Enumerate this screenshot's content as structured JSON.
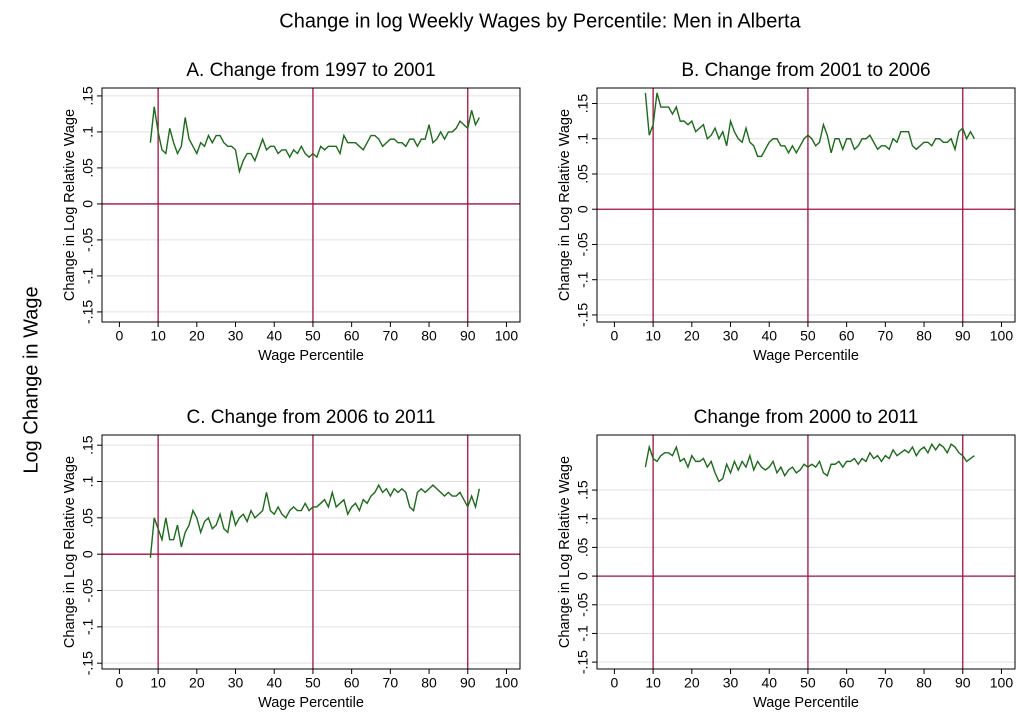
{
  "title": "Change in log Weekly Wages by Percentile: Men in Alberta",
  "ylabel": "Log Change in Wage",
  "chart_data": [
    {
      "type": "line",
      "title": "A. Change from 1997 to 2001",
      "xlabel": "Wage Percentile",
      "ylabel": "Change in Log Relative Wage",
      "color": "#1b6b1b",
      "refline_color": "#a3123f",
      "grid": true,
      "xlim": [
        -4.5,
        103.5
      ],
      "ylim": [
        -0.164,
        0.161
      ],
      "xticks": [
        0,
        10,
        20,
        30,
        40,
        50,
        60,
        70,
        80,
        90,
        100
      ],
      "yticks": [
        {
          "value": 0.15,
          "label": ".15"
        },
        {
          "value": 0.1,
          "label": ".1"
        },
        {
          "value": 0.05,
          "label": ".05"
        },
        0,
        {
          "value": -0.05,
          "label": "-.05"
        },
        {
          "value": -0.1,
          "label": "-.1"
        },
        {
          "value": -0.15,
          "label": "-.15"
        }
      ],
      "xlines": [
        10,
        50,
        90
      ],
      "ylines": [
        0
      ],
      "x": [
        8,
        9,
        10,
        11,
        12,
        13,
        14,
        15,
        16,
        17,
        18,
        19,
        20,
        21,
        22,
        23,
        24,
        25,
        26,
        27,
        28,
        29,
        30,
        31,
        32,
        33,
        34,
        35,
        36,
        37,
        38,
        39,
        40,
        41,
        42,
        43,
        44,
        45,
        46,
        47,
        48,
        49,
        50,
        51,
        52,
        53,
        54,
        55,
        56,
        57,
        58,
        59,
        60,
        61,
        62,
        63,
        64,
        65,
        66,
        67,
        68,
        69,
        70,
        71,
        72,
        73,
        74,
        75,
        76,
        77,
        78,
        79,
        80,
        81,
        82,
        83,
        84,
        85,
        86,
        87,
        88,
        89,
        90,
        91,
        92,
        93
      ],
      "values": [
        0.085,
        0.135,
        0.1,
        0.075,
        0.07,
        0.105,
        0.085,
        0.07,
        0.08,
        0.12,
        0.09,
        0.08,
        0.07,
        0.085,
        0.08,
        0.095,
        0.085,
        0.095,
        0.095,
        0.085,
        0.08,
        0.08,
        0.075,
        0.045,
        0.06,
        0.07,
        0.07,
        0.06,
        0.075,
        0.09,
        0.075,
        0.08,
        0.08,
        0.07,
        0.075,
        0.075,
        0.065,
        0.075,
        0.07,
        0.08,
        0.07,
        0.065,
        0.07,
        0.065,
        0.08,
        0.075,
        0.08,
        0.08,
        0.08,
        0.07,
        0.095,
        0.085,
        0.085,
        0.085,
        0.08,
        0.075,
        0.085,
        0.095,
        0.095,
        0.09,
        0.08,
        0.085,
        0.09,
        0.09,
        0.085,
        0.085,
        0.08,
        0.09,
        0.09,
        0.08,
        0.09,
        0.09,
        0.11,
        0.085,
        0.09,
        0.1,
        0.09,
        0.1,
        0.1,
        0.105,
        0.115,
        0.11,
        0.105,
        0.13,
        0.11,
        0.12
      ]
    },
    {
      "type": "line",
      "title": "B. Change from 2001 to 2006",
      "xlabel": "Wage Percentile",
      "ylabel": "Change in Log Relative Wage",
      "color": "#1b6b1b",
      "refline_color": "#a3123f",
      "grid": true,
      "xlim": [
        -4.5,
        103.5
      ],
      "ylim": [
        -0.16,
        0.172
      ],
      "xticks": [
        0,
        10,
        20,
        30,
        40,
        50,
        60,
        70,
        80,
        90,
        100
      ],
      "yticks": [
        {
          "value": 0.15,
          "label": ".15"
        },
        {
          "value": 0.1,
          "label": ".1"
        },
        {
          "value": 0.05,
          "label": ".05"
        },
        0,
        {
          "value": -0.05,
          "label": "-.05"
        },
        {
          "value": -0.1,
          "label": "-.1"
        },
        {
          "value": -0.15,
          "label": "-.15"
        }
      ],
      "xlines": [
        10,
        50,
        90
      ],
      "ylines": [
        0
      ],
      "x": [
        8,
        9,
        10,
        11,
        12,
        13,
        14,
        15,
        16,
        17,
        18,
        19,
        20,
        21,
        22,
        23,
        24,
        25,
        26,
        27,
        28,
        29,
        30,
        31,
        32,
        33,
        34,
        35,
        36,
        37,
        38,
        39,
        40,
        41,
        42,
        43,
        44,
        45,
        46,
        47,
        48,
        49,
        50,
        51,
        52,
        53,
        54,
        55,
        56,
        57,
        58,
        59,
        60,
        61,
        62,
        63,
        64,
        65,
        66,
        67,
        68,
        69,
        70,
        71,
        72,
        73,
        74,
        75,
        76,
        77,
        78,
        79,
        80,
        81,
        82,
        83,
        84,
        85,
        86,
        87,
        88,
        89,
        90,
        91,
        92,
        93
      ],
      "values": [
        0.165,
        0.105,
        0.12,
        0.165,
        0.145,
        0.145,
        0.145,
        0.135,
        0.145,
        0.125,
        0.125,
        0.12,
        0.125,
        0.11,
        0.115,
        0.12,
        0.1,
        0.105,
        0.115,
        0.1,
        0.11,
        0.09,
        0.125,
        0.11,
        0.1,
        0.095,
        0.115,
        0.095,
        0.09,
        0.075,
        0.075,
        0.085,
        0.095,
        0.1,
        0.1,
        0.09,
        0.09,
        0.08,
        0.09,
        0.08,
        0.09,
        0.1,
        0.105,
        0.1,
        0.09,
        0.095,
        0.12,
        0.105,
        0.08,
        0.1,
        0.1,
        0.085,
        0.1,
        0.1,
        0.085,
        0.09,
        0.1,
        0.1,
        0.105,
        0.095,
        0.085,
        0.09,
        0.09,
        0.085,
        0.1,
        0.095,
        0.11,
        0.11,
        0.11,
        0.09,
        0.085,
        0.09,
        0.095,
        0.095,
        0.09,
        0.1,
        0.1,
        0.095,
        0.095,
        0.1,
        0.085,
        0.11,
        0.115,
        0.1,
        0.11,
        0.1
      ]
    },
    {
      "type": "line",
      "title": "C. Change from 2006 to 2011",
      "xlabel": "Wage Percentile",
      "ylabel": "Change in Log Relative Wage",
      "color": "#1b6b1b",
      "refline_color": "#a3123f",
      "grid": true,
      "xlim": [
        -4.5,
        103.5
      ],
      "ylim": [
        -0.158,
        0.164
      ],
      "xticks": [
        0,
        10,
        20,
        30,
        40,
        50,
        60,
        70,
        80,
        90,
        100
      ],
      "yticks": [
        {
          "value": 0.15,
          "label": ".15"
        },
        {
          "value": 0.1,
          "label": ".1"
        },
        {
          "value": 0.05,
          "label": ".05"
        },
        0,
        {
          "value": -0.05,
          "label": "-.05"
        },
        {
          "value": -0.1,
          "label": "-.1"
        },
        {
          "value": -0.15,
          "label": "-.15"
        }
      ],
      "xlines": [
        10,
        50,
        90
      ],
      "ylines": [
        0
      ],
      "x": [
        8,
        9,
        10,
        11,
        12,
        13,
        14,
        15,
        16,
        17,
        18,
        19,
        20,
        21,
        22,
        23,
        24,
        25,
        26,
        27,
        28,
        29,
        30,
        31,
        32,
        33,
        34,
        35,
        36,
        37,
        38,
        39,
        40,
        41,
        42,
        43,
        44,
        45,
        46,
        47,
        48,
        49,
        50,
        51,
        52,
        53,
        54,
        55,
        56,
        57,
        58,
        59,
        60,
        61,
        62,
        63,
        64,
        65,
        66,
        67,
        68,
        69,
        70,
        71,
        72,
        73,
        74,
        75,
        76,
        77,
        78,
        79,
        80,
        81,
        82,
        83,
        84,
        85,
        86,
        87,
        88,
        89,
        90,
        91,
        92,
        93
      ],
      "values": [
        -0.005,
        0.05,
        0.035,
        0.02,
        0.05,
        0.02,
        0.02,
        0.04,
        0.01,
        0.03,
        0.04,
        0.06,
        0.05,
        0.03,
        0.045,
        0.05,
        0.035,
        0.04,
        0.055,
        0.035,
        0.03,
        0.06,
        0.04,
        0.05,
        0.055,
        0.045,
        0.06,
        0.05,
        0.055,
        0.06,
        0.085,
        0.06,
        0.055,
        0.065,
        0.055,
        0.05,
        0.06,
        0.065,
        0.06,
        0.06,
        0.07,
        0.06,
        0.065,
        0.065,
        0.07,
        0.075,
        0.065,
        0.085,
        0.065,
        0.07,
        0.075,
        0.055,
        0.065,
        0.07,
        0.06,
        0.075,
        0.07,
        0.08,
        0.085,
        0.095,
        0.085,
        0.09,
        0.08,
        0.09,
        0.085,
        0.09,
        0.085,
        0.065,
        0.06,
        0.085,
        0.09,
        0.085,
        0.09,
        0.095,
        0.09,
        0.085,
        0.08,
        0.085,
        0.08,
        0.08,
        0.085,
        0.075,
        0.065,
        0.08,
        0.065,
        0.09
      ]
    },
    {
      "type": "line",
      "title": "Change from 2000 to 2011",
      "xlabel": "Wage Percentile",
      "ylabel": "Change in Log Relative Wage",
      "color": "#1b6b1b",
      "refline_color": "#a3123f",
      "grid": true,
      "xlim": [
        -4.5,
        103.5
      ],
      "ylim": [
        -0.162,
        0.246
      ],
      "xticks": [
        0,
        10,
        20,
        30,
        40,
        50,
        60,
        70,
        80,
        90,
        100
      ],
      "yticks": [
        {
          "value": 0.15,
          "label": ".15"
        },
        {
          "value": 0.1,
          "label": ".1"
        },
        {
          "value": 0.05,
          "label": ".05"
        },
        0,
        {
          "value": -0.05,
          "label": "-.05"
        },
        {
          "value": -0.1,
          "label": "-.1"
        },
        {
          "value": -0.15,
          "label": "-.15"
        }
      ],
      "xlines": [
        10,
        50,
        90
      ],
      "ylines": [
        0
      ],
      "x": [
        8,
        9,
        10,
        11,
        12,
        13,
        14,
        15,
        16,
        17,
        18,
        19,
        20,
        21,
        22,
        23,
        24,
        25,
        26,
        27,
        28,
        29,
        30,
        31,
        32,
        33,
        34,
        35,
        36,
        37,
        38,
        39,
        40,
        41,
        42,
        43,
        44,
        45,
        46,
        47,
        48,
        49,
        50,
        51,
        52,
        53,
        54,
        55,
        56,
        57,
        58,
        59,
        60,
        61,
        62,
        63,
        64,
        65,
        66,
        67,
        68,
        69,
        70,
        71,
        72,
        73,
        74,
        75,
        76,
        77,
        78,
        79,
        80,
        81,
        82,
        83,
        84,
        85,
        86,
        87,
        88,
        89,
        90,
        91,
        92,
        93
      ],
      "values": [
        0.19,
        0.225,
        0.205,
        0.2,
        0.21,
        0.215,
        0.215,
        0.21,
        0.225,
        0.2,
        0.205,
        0.19,
        0.21,
        0.2,
        0.2,
        0.205,
        0.19,
        0.2,
        0.18,
        0.165,
        0.17,
        0.195,
        0.18,
        0.2,
        0.185,
        0.2,
        0.19,
        0.21,
        0.185,
        0.2,
        0.19,
        0.185,
        0.19,
        0.2,
        0.18,
        0.19,
        0.175,
        0.185,
        0.19,
        0.18,
        0.185,
        0.195,
        0.19,
        0.195,
        0.19,
        0.2,
        0.18,
        0.175,
        0.195,
        0.195,
        0.2,
        0.19,
        0.2,
        0.2,
        0.205,
        0.195,
        0.205,
        0.2,
        0.215,
        0.205,
        0.21,
        0.2,
        0.21,
        0.205,
        0.22,
        0.21,
        0.215,
        0.22,
        0.215,
        0.225,
        0.21,
        0.22,
        0.225,
        0.215,
        0.23,
        0.22,
        0.23,
        0.225,
        0.215,
        0.23,
        0.225,
        0.215,
        0.21,
        0.2,
        0.205,
        0.21
      ]
    }
  ]
}
